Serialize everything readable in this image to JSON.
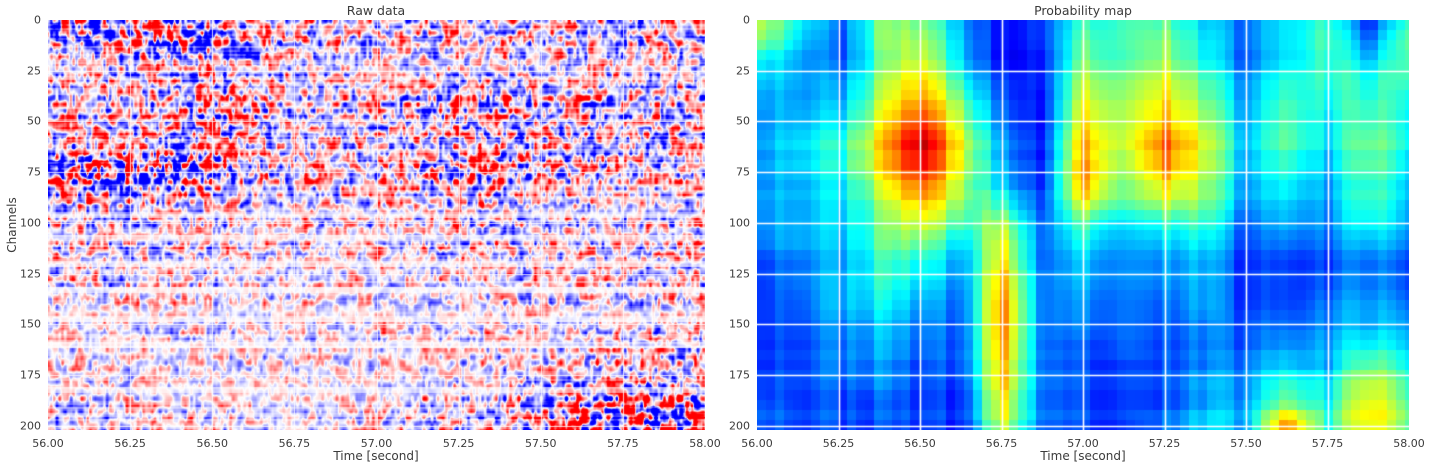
{
  "figure": {
    "background": "#ffffff"
  },
  "style": {
    "text_color": "#3b3b3b",
    "grid_color": "#ffffff",
    "raw_negative_color": "#0000ff",
    "raw_positive_color": "#ff0000",
    "jet_low_color": "#000080",
    "jet_high_color": "#800000"
  },
  "chart_data": [
    {
      "type": "heatmap",
      "title": "Raw data",
      "xlabel": "Time [second]",
      "ylabel": "Channels",
      "colormap": "bwr",
      "xlim": [
        56.0,
        58.0
      ],
      "ylim": [
        0,
        202
      ],
      "grid": true,
      "legend": "none",
      "x_ticks": [
        "56.00",
        "56.25",
        "56.50",
        "56.75",
        "57.00",
        "57.25",
        "57.50",
        "57.75",
        "58.00"
      ],
      "y_ticks": [
        "0",
        "25",
        "50",
        "75",
        "100",
        "125",
        "150",
        "175",
        "200"
      ],
      "x_grid_seconds": [
        56.0,
        56.125,
        56.25,
        56.375,
        56.5,
        56.625,
        56.75,
        56.875,
        57.0,
        57.125,
        57.25,
        57.375,
        57.5,
        57.625,
        57.75,
        57.875,
        58.0
      ],
      "channel_rows": [
        0,
        10,
        20,
        30,
        40,
        50,
        60,
        70,
        80,
        90,
        100,
        110,
        120,
        130,
        140,
        150,
        160,
        170,
        180,
        190,
        200
      ],
      "amplitude_grid": [
        [
          0.75,
          0.8,
          0.85,
          0.85,
          0.75,
          0.6,
          0.5,
          0.5,
          0.5,
          0.45,
          0.5,
          0.5,
          0.45,
          0.5,
          0.5,
          0.5,
          0.5
        ],
        [
          0.6,
          0.7,
          0.78,
          0.8,
          0.7,
          0.55,
          0.48,
          0.45,
          0.45,
          0.45,
          0.5,
          0.48,
          0.45,
          0.45,
          0.5,
          0.5,
          0.5
        ],
        [
          0.48,
          0.52,
          0.55,
          0.6,
          0.55,
          0.5,
          0.45,
          0.4,
          0.4,
          0.4,
          0.45,
          0.45,
          0.4,
          0.4,
          0.45,
          0.45,
          0.45
        ],
        [
          0.45,
          0.45,
          0.5,
          0.52,
          0.62,
          0.5,
          0.45,
          0.4,
          0.4,
          0.42,
          0.48,
          0.45,
          0.42,
          0.4,
          0.4,
          0.45,
          0.45
        ],
        [
          0.45,
          0.45,
          0.5,
          0.52,
          0.75,
          0.55,
          0.5,
          0.45,
          0.45,
          0.5,
          0.6,
          0.55,
          0.5,
          0.5,
          0.5,
          0.5,
          0.5
        ],
        [
          0.5,
          0.5,
          0.52,
          0.56,
          0.78,
          0.6,
          0.5,
          0.45,
          0.5,
          0.55,
          0.65,
          0.6,
          0.55,
          0.5,
          0.5,
          0.5,
          0.5
        ],
        [
          0.52,
          0.56,
          0.6,
          0.6,
          0.62,
          0.55,
          0.5,
          0.5,
          0.5,
          0.55,
          0.65,
          0.6,
          0.55,
          0.5,
          0.5,
          0.5,
          0.5
        ],
        [
          0.95,
          1.0,
          1.0,
          0.95,
          0.8,
          0.6,
          0.5,
          0.5,
          0.5,
          0.55,
          0.7,
          0.65,
          0.6,
          0.55,
          0.5,
          0.5,
          0.5
        ],
        [
          0.8,
          0.85,
          0.85,
          0.8,
          0.7,
          0.55,
          0.5,
          0.45,
          0.5,
          0.5,
          0.65,
          0.6,
          0.55,
          0.5,
          0.45,
          0.45,
          0.5
        ],
        [
          0.6,
          0.6,
          0.6,
          0.55,
          0.5,
          0.45,
          0.45,
          0.4,
          0.45,
          0.45,
          0.55,
          0.5,
          0.45,
          0.4,
          0.4,
          0.4,
          0.45
        ],
        [
          0.5,
          0.5,
          0.5,
          0.45,
          0.45,
          0.4,
          0.4,
          0.4,
          0.4,
          0.4,
          0.5,
          0.5,
          0.45,
          0.4,
          0.4,
          0.45,
          0.5
        ],
        [
          0.45,
          0.45,
          0.45,
          0.4,
          0.4,
          0.4,
          0.4,
          0.35,
          0.4,
          0.4,
          0.5,
          0.5,
          0.5,
          0.45,
          0.45,
          0.5,
          0.5
        ],
        [
          0.4,
          0.4,
          0.4,
          0.4,
          0.4,
          0.35,
          0.35,
          0.35,
          0.35,
          0.35,
          0.4,
          0.45,
          0.4,
          0.4,
          0.4,
          0.4,
          0.45
        ],
        [
          0.4,
          0.4,
          0.4,
          0.35,
          0.35,
          0.35,
          0.35,
          0.3,
          0.35,
          0.35,
          0.4,
          0.4,
          0.4,
          0.35,
          0.4,
          0.4,
          0.4
        ],
        [
          0.35,
          0.35,
          0.35,
          0.35,
          0.3,
          0.3,
          0.3,
          0.3,
          0.3,
          0.3,
          0.35,
          0.35,
          0.35,
          0.35,
          0.35,
          0.4,
          0.4
        ],
        [
          0.3,
          0.3,
          0.3,
          0.3,
          0.3,
          0.3,
          0.3,
          0.3,
          0.3,
          0.3,
          0.3,
          0.35,
          0.35,
          0.35,
          0.35,
          0.4,
          0.4
        ],
        [
          0.3,
          0.3,
          0.3,
          0.3,
          0.3,
          0.3,
          0.3,
          0.3,
          0.3,
          0.3,
          0.3,
          0.35,
          0.35,
          0.4,
          0.45,
          0.5,
          0.5
        ],
        [
          0.35,
          0.35,
          0.3,
          0.3,
          0.3,
          0.3,
          0.3,
          0.3,
          0.3,
          0.3,
          0.35,
          0.4,
          0.4,
          0.45,
          0.5,
          0.55,
          0.55
        ],
        [
          0.4,
          0.4,
          0.35,
          0.35,
          0.3,
          0.3,
          0.3,
          0.3,
          0.3,
          0.35,
          0.4,
          0.45,
          0.5,
          0.6,
          0.65,
          0.7,
          0.7
        ],
        [
          0.45,
          0.4,
          0.4,
          0.35,
          0.35,
          0.3,
          0.3,
          0.3,
          0.35,
          0.4,
          0.45,
          0.5,
          0.6,
          0.8,
          0.9,
          1.0,
          1.0
        ],
        [
          0.45,
          0.4,
          0.4,
          0.35,
          0.35,
          0.3,
          0.3,
          0.35,
          0.4,
          0.4,
          0.5,
          0.55,
          0.65,
          0.85,
          0.95,
          1.0,
          1.0
        ]
      ],
      "quiet_channels": [
        96,
        107,
        120,
        133,
        147,
        160,
        182
      ]
    },
    {
      "type": "heatmap",
      "title": "Probability map",
      "xlabel": "Time [second]",
      "ylabel": "",
      "colormap": "jet",
      "xlim": [
        56.0,
        58.0
      ],
      "ylim": [
        0,
        202
      ],
      "grid": true,
      "legend": "none",
      "x_ticks": [
        "56.00",
        "56.25",
        "56.50",
        "56.75",
        "57.00",
        "57.25",
        "57.50",
        "57.75",
        "58.00"
      ],
      "y_ticks": [
        "0",
        "25",
        "50",
        "75",
        "100",
        "125",
        "150",
        "175",
        "200"
      ],
      "x_grid_seconds": [
        56.0,
        56.125,
        56.25,
        56.375,
        56.5,
        56.625,
        56.75,
        56.875,
        57.0,
        57.125,
        57.25,
        57.375,
        57.5,
        57.625,
        57.75,
        57.875,
        58.0
      ],
      "channel_rows": [
        0,
        10,
        20,
        30,
        40,
        50,
        60,
        70,
        80,
        90,
        100,
        110,
        120,
        130,
        140,
        150,
        160,
        170,
        180,
        190,
        200
      ],
      "values": [
        [
          0.6,
          0.4,
          0.22,
          0.48,
          0.5,
          0.28,
          0.13,
          0.15,
          0.42,
          0.4,
          0.45,
          0.32,
          0.22,
          0.38,
          0.42,
          0.15,
          0.45
        ],
        [
          0.55,
          0.35,
          0.18,
          0.48,
          0.55,
          0.3,
          0.12,
          0.14,
          0.46,
          0.4,
          0.5,
          0.35,
          0.22,
          0.37,
          0.45,
          0.22,
          0.5
        ],
        [
          0.42,
          0.32,
          0.22,
          0.47,
          0.62,
          0.35,
          0.14,
          0.13,
          0.52,
          0.42,
          0.55,
          0.4,
          0.22,
          0.4,
          0.45,
          0.35,
          0.5
        ],
        [
          0.35,
          0.3,
          0.26,
          0.5,
          0.68,
          0.4,
          0.18,
          0.12,
          0.56,
          0.46,
          0.6,
          0.45,
          0.26,
          0.44,
          0.42,
          0.4,
          0.46
        ],
        [
          0.32,
          0.3,
          0.3,
          0.55,
          0.76,
          0.5,
          0.22,
          0.11,
          0.62,
          0.5,
          0.66,
          0.5,
          0.28,
          0.48,
          0.4,
          0.45,
          0.42
        ],
        [
          0.3,
          0.33,
          0.35,
          0.6,
          0.86,
          0.55,
          0.25,
          0.11,
          0.66,
          0.52,
          0.7,
          0.55,
          0.3,
          0.5,
          0.37,
          0.48,
          0.4
        ],
        [
          0.3,
          0.35,
          0.4,
          0.64,
          0.96,
          0.6,
          0.28,
          0.11,
          0.7,
          0.52,
          0.78,
          0.58,
          0.3,
          0.5,
          0.35,
          0.5,
          0.4
        ],
        [
          0.3,
          0.35,
          0.4,
          0.64,
          0.92,
          0.6,
          0.3,
          0.12,
          0.73,
          0.5,
          0.76,
          0.58,
          0.3,
          0.46,
          0.32,
          0.5,
          0.37
        ],
        [
          0.3,
          0.32,
          0.36,
          0.58,
          0.82,
          0.55,
          0.33,
          0.13,
          0.74,
          0.46,
          0.66,
          0.54,
          0.28,
          0.42,
          0.3,
          0.46,
          0.35
        ],
        [
          0.3,
          0.3,
          0.34,
          0.5,
          0.7,
          0.5,
          0.42,
          0.15,
          0.62,
          0.42,
          0.56,
          0.5,
          0.26,
          0.36,
          0.27,
          0.45,
          0.32
        ],
        [
          0.28,
          0.3,
          0.32,
          0.46,
          0.6,
          0.42,
          0.55,
          0.18,
          0.45,
          0.3,
          0.4,
          0.42,
          0.2,
          0.32,
          0.25,
          0.4,
          0.3
        ],
        [
          0.26,
          0.3,
          0.3,
          0.45,
          0.5,
          0.32,
          0.62,
          0.18,
          0.38,
          0.25,
          0.32,
          0.36,
          0.18,
          0.26,
          0.22,
          0.32,
          0.26
        ],
        [
          0.22,
          0.26,
          0.3,
          0.42,
          0.42,
          0.28,
          0.68,
          0.2,
          0.33,
          0.24,
          0.28,
          0.32,
          0.17,
          0.22,
          0.2,
          0.27,
          0.22
        ],
        [
          0.2,
          0.25,
          0.3,
          0.4,
          0.36,
          0.24,
          0.72,
          0.2,
          0.3,
          0.22,
          0.26,
          0.3,
          0.16,
          0.21,
          0.2,
          0.26,
          0.21
        ],
        [
          0.2,
          0.22,
          0.3,
          0.36,
          0.3,
          0.21,
          0.76,
          0.2,
          0.26,
          0.2,
          0.22,
          0.3,
          0.16,
          0.21,
          0.24,
          0.3,
          0.25
        ],
        [
          0.2,
          0.21,
          0.26,
          0.31,
          0.26,
          0.2,
          0.76,
          0.2,
          0.25,
          0.2,
          0.21,
          0.26,
          0.2,
          0.25,
          0.26,
          0.31,
          0.3
        ],
        [
          0.2,
          0.2,
          0.25,
          0.3,
          0.25,
          0.2,
          0.75,
          0.2,
          0.21,
          0.2,
          0.2,
          0.26,
          0.21,
          0.3,
          0.3,
          0.4,
          0.35
        ],
        [
          0.2,
          0.2,
          0.25,
          0.26,
          0.21,
          0.2,
          0.71,
          0.2,
          0.2,
          0.16,
          0.2,
          0.26,
          0.25,
          0.36,
          0.3,
          0.5,
          0.4
        ],
        [
          0.21,
          0.2,
          0.21,
          0.25,
          0.2,
          0.16,
          0.7,
          0.2,
          0.2,
          0.16,
          0.2,
          0.3,
          0.26,
          0.46,
          0.36,
          0.6,
          0.45
        ],
        [
          0.25,
          0.2,
          0.2,
          0.21,
          0.2,
          0.16,
          0.66,
          0.2,
          0.2,
          0.16,
          0.2,
          0.3,
          0.3,
          0.56,
          0.4,
          0.66,
          0.5
        ],
        [
          0.25,
          0.2,
          0.2,
          0.2,
          0.2,
          0.15,
          0.6,
          0.2,
          0.2,
          0.15,
          0.25,
          0.36,
          0.3,
          0.8,
          0.42,
          0.66,
          0.5
        ]
      ]
    }
  ]
}
